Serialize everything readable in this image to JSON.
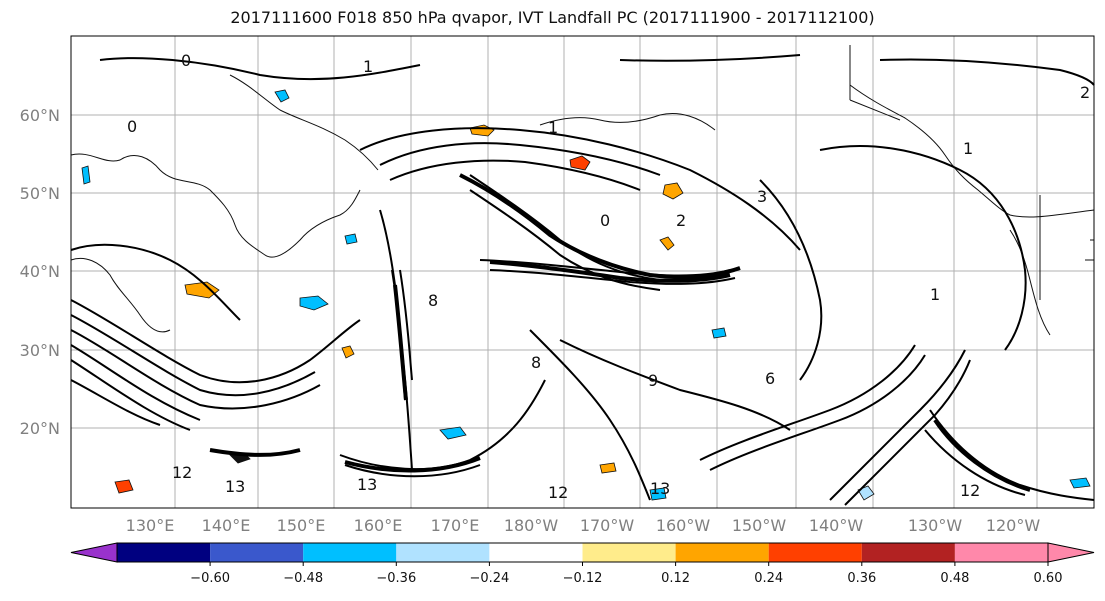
{
  "title": "2017111600 F018 850 hPa qvapor, IVT Landfall PC (2017111900 - 2017112100)",
  "lat_ticks": [
    "60°N",
    "50°N",
    "40°N",
    "30°N",
    "20°N"
  ],
  "lon_ticks": [
    "130°E",
    "140°E",
    "150°E",
    "160°E",
    "170°E",
    "180°W",
    "170°W",
    "160°W",
    "150°W",
    "140°W",
    "130°W",
    "120°W"
  ],
  "contour_labels": [
    "0",
    "1",
    "0",
    "1",
    "1",
    "2",
    "3",
    "2",
    "0",
    "1",
    "8",
    "6",
    "12",
    "13",
    "13",
    "12",
    "13",
    "12",
    "9",
    "8"
  ],
  "colorbar": {
    "colors": [
      "#9932cc",
      "#000080",
      "#3a58cc",
      "#00bfff",
      "#b0e2ff",
      "#ffffff",
      "#ffec8b",
      "#ffa500",
      "#ff4000",
      "#b22222",
      "#ff88aa",
      "#ff88aa"
    ],
    "tick_labels": [
      "−0.60",
      "−0.48",
      "−0.36",
      "−0.24",
      "−0.12",
      "0.12",
      "0.24",
      "0.36",
      "0.48",
      "0.60"
    ]
  }
}
